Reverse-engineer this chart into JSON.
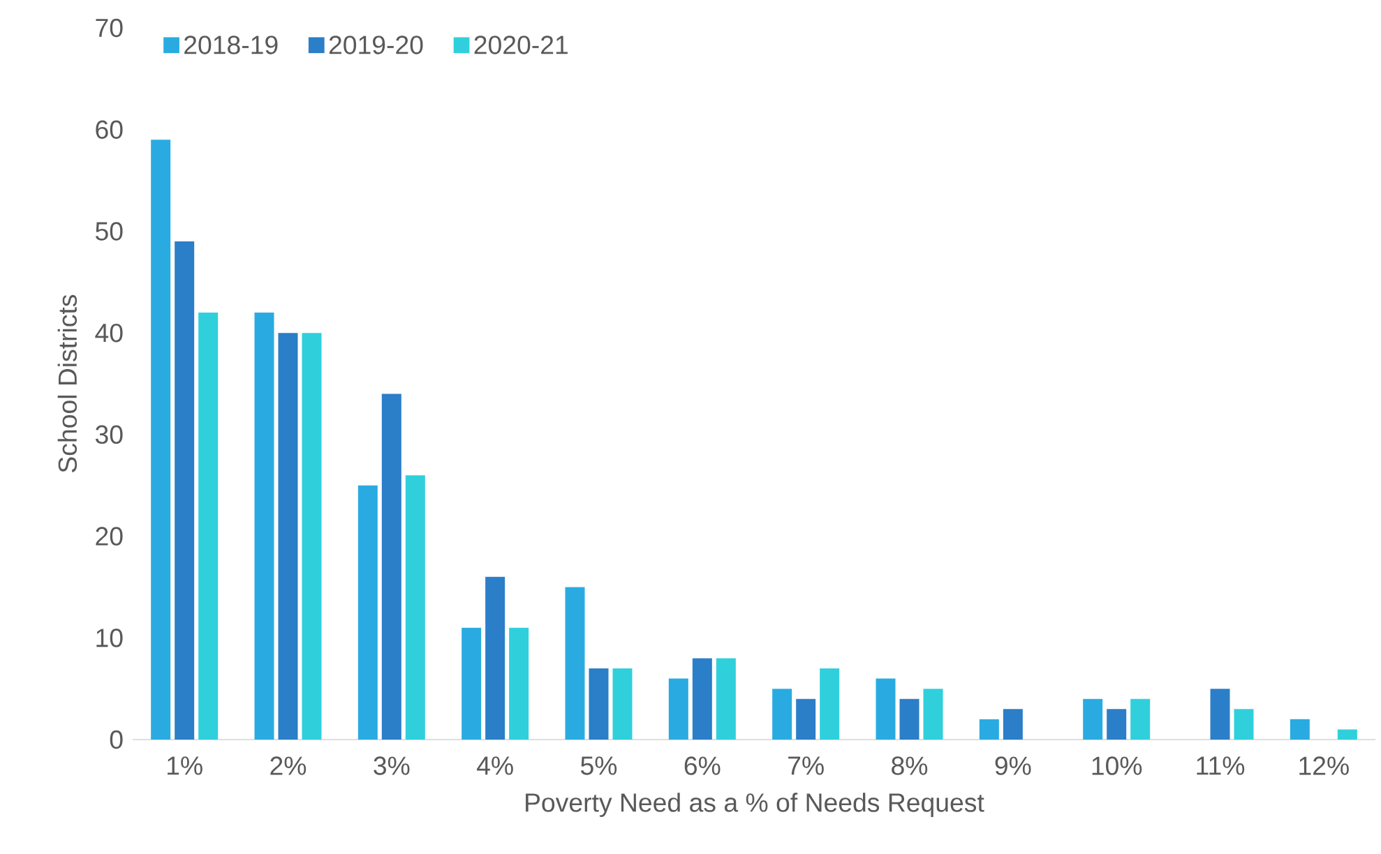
{
  "chart_data": {
    "type": "bar",
    "xlabel": "Poverty Need as a % of Needs Request",
    "ylabel": "School Districts",
    "categories": [
      "1%",
      "2%",
      "3%",
      "4%",
      "5%",
      "6%",
      "7%",
      "8%",
      "9%",
      "10%",
      "11%",
      "12%"
    ],
    "series": [
      {
        "name": "2018-19",
        "color": "#29abe2",
        "values": [
          59,
          42,
          25,
          11,
          15,
          6,
          5,
          6,
          2,
          4,
          0,
          2
        ]
      },
      {
        "name": "2019-20",
        "color": "#2b7ec8",
        "values": [
          49,
          40,
          34,
          16,
          7,
          8,
          4,
          4,
          3,
          3,
          5,
          0
        ]
      },
      {
        "name": "2020-21",
        "color": "#2fd0dc",
        "values": [
          42,
          40,
          26,
          11,
          7,
          8,
          7,
          5,
          0,
          4,
          3,
          1
        ]
      }
    ],
    "ylim": [
      0,
      70
    ],
    "yticks": [
      0,
      10,
      20,
      30,
      40,
      50,
      60,
      70
    ],
    "legend": "top left"
  }
}
